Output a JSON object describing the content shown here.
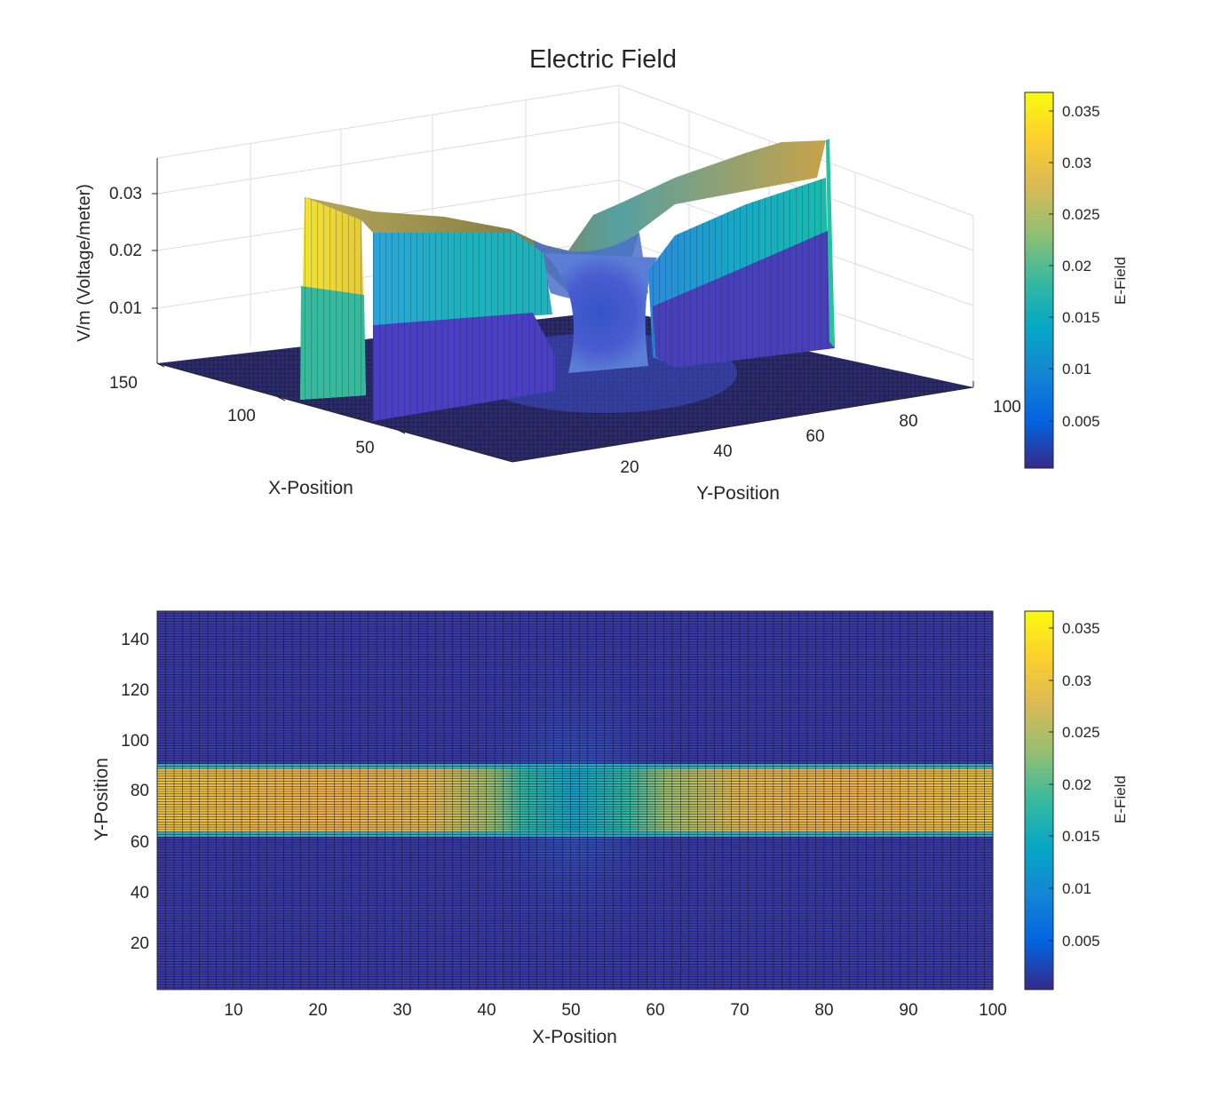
{
  "figure": {
    "title": "Electric Field"
  },
  "chart_data": [
    {
      "type": "surface",
      "title": "Electric Field",
      "xlabel": "X-Position",
      "ylabel": "Y-Position",
      "zlabel": "V/m (Voltage/meter)",
      "xlim": [
        1,
        150
      ],
      "ylim": [
        1,
        100
      ],
      "zlim": [
        0,
        0.036
      ],
      "x_ticks": [
        50,
        100,
        150
      ],
      "y_ticks": [
        20,
        40,
        60,
        80,
        100
      ],
      "z_ticks": [
        0.01,
        0.02,
        0.03
      ],
      "z_tick_labels": [
        "0.01",
        "0.02",
        "0.03"
      ],
      "colormap": "parula",
      "colorbar": {
        "label": "E-Field",
        "ticks": [
          "0.005",
          "0.01",
          "0.015",
          "0.02",
          "0.025",
          "0.03",
          "0.035"
        ],
        "range": [
          0.0002,
          0.0366
        ]
      },
      "field_model": {
        "band_x": [
          62,
          88
        ],
        "band_peak": 0.033,
        "band_side_level": 0.02,
        "gap_y": [
          43,
          58
        ],
        "gap_level": 0.012,
        "background": 0.0004
      },
      "grid": true
    },
    {
      "type": "heatmap",
      "title": "",
      "xlabel": "X-Position",
      "ylabel": "Y-Position",
      "xlim": [
        1,
        100
      ],
      "ylim": [
        1,
        150
      ],
      "x_ticks": [
        10,
        20,
        30,
        40,
        50,
        60,
        70,
        80,
        90,
        100
      ],
      "y_ticks": [
        20,
        40,
        60,
        80,
        100,
        120,
        140
      ],
      "colormap": "parula",
      "colorbar": {
        "label": "E-Field",
        "ticks": [
          "0.005",
          "0.01",
          "0.015",
          "0.02",
          "0.025",
          "0.03",
          "0.035"
        ],
        "range": [
          0.0002,
          0.0366
        ]
      },
      "band_rows": [
        62,
        88
      ],
      "band_peak": 0.031,
      "gap_columns": [
        43,
        58
      ],
      "gap_level": 0.012,
      "background": 0.0008
    }
  ]
}
